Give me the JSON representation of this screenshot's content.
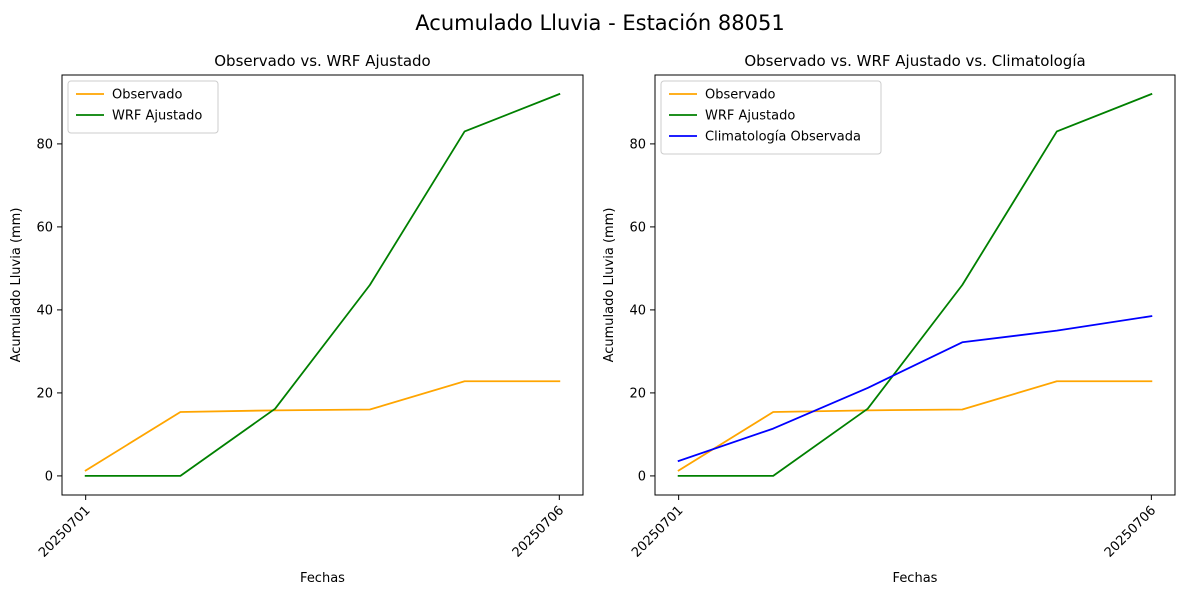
{
  "figure": {
    "title": "Acumulado Lluvia - Estación 88051"
  },
  "chart_data": [
    {
      "type": "line",
      "title": "Observado vs. WRF Ajustado",
      "xlabel": "Fechas",
      "ylabel": "Acumulado Lluvia (mm)",
      "x": [
        20250701,
        20250702,
        20250703,
        20250704,
        20250705,
        20250706
      ],
      "xticks": [
        20250701,
        20250706
      ],
      "xtick_labels": [
        "20250701",
        "20250706"
      ],
      "xlim": [
        20250700.75,
        20250706.25
      ],
      "ylim": [
        -4.6,
        96.6
      ],
      "yticks": [
        0,
        20,
        40,
        60,
        80
      ],
      "ytick_labels": [
        "0",
        "20",
        "40",
        "60",
        "80"
      ],
      "grid": false,
      "legend": "top-left",
      "series": [
        {
          "name": "Observado",
          "color": "#ffa500",
          "values": [
            1.3,
            15.4,
            15.8,
            16.0,
            22.8,
            22.8
          ]
        },
        {
          "name": "WRF Ajustado",
          "color": "#008000",
          "values": [
            0.0,
            0.0,
            16.2,
            46.0,
            83.0,
            92.0
          ]
        }
      ]
    },
    {
      "type": "line",
      "title": "Observado vs. WRF Ajustado vs. Climatología",
      "xlabel": "Fechas",
      "ylabel": "Acumulado Lluvia (mm)",
      "x": [
        20250701,
        20250702,
        20250703,
        20250704,
        20250705,
        20250706
      ],
      "xticks": [
        20250701,
        20250706
      ],
      "xtick_labels": [
        "20250701",
        "20250706"
      ],
      "xlim": [
        20250700.75,
        20250706.25
      ],
      "ylim": [
        -4.6,
        96.6
      ],
      "yticks": [
        0,
        20,
        40,
        60,
        80
      ],
      "ytick_labels": [
        "0",
        "20",
        "40",
        "60",
        "80"
      ],
      "grid": false,
      "legend": "top-left",
      "series": [
        {
          "name": "Observado",
          "color": "#ffa500",
          "values": [
            1.3,
            15.4,
            15.8,
            16.0,
            22.8,
            22.8
          ]
        },
        {
          "name": "WRF Ajustado",
          "color": "#008000",
          "values": [
            0.0,
            0.0,
            16.2,
            46.0,
            83.0,
            92.0
          ]
        },
        {
          "name": "Climatología Observada",
          "color": "#0000ff",
          "values": [
            3.6,
            11.4,
            21.2,
            32.2,
            35.0,
            38.5
          ]
        }
      ]
    }
  ]
}
